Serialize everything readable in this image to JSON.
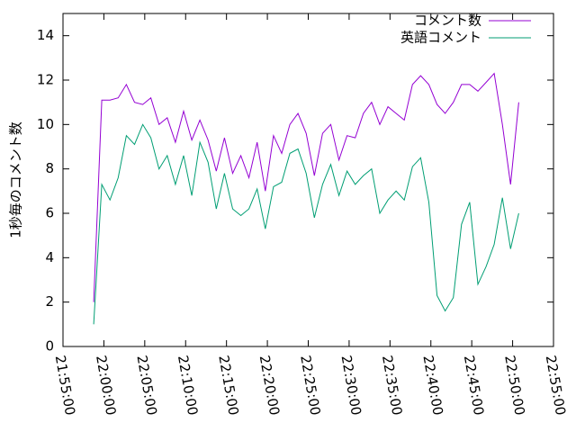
{
  "chart_data": {
    "type": "line",
    "ylabel": "1秒毎のコメント数",
    "x": [
      "21:58:45",
      "21:59:45",
      "22:00:45",
      "22:01:45",
      "22:02:45",
      "22:03:45",
      "22:04:45",
      "22:05:45",
      "22:06:45",
      "22:07:45",
      "22:08:45",
      "22:09:45",
      "22:10:45",
      "22:11:45",
      "22:12:45",
      "22:13:45",
      "22:14:45",
      "22:15:45",
      "22:16:45",
      "22:17:45",
      "22:18:45",
      "22:19:45",
      "22:20:45",
      "22:21:45",
      "22:22:45",
      "22:23:45",
      "22:24:45",
      "22:25:45",
      "22:26:45",
      "22:27:45",
      "22:28:45",
      "22:29:45",
      "22:30:45",
      "22:31:45",
      "22:32:45",
      "22:33:45",
      "22:34:45",
      "22:35:45",
      "22:36:45",
      "22:37:45",
      "22:38:45",
      "22:39:45",
      "22:40:45",
      "22:41:45",
      "22:42:45",
      "22:43:45",
      "22:44:45",
      "22:45:45",
      "22:46:45",
      "22:47:45",
      "22:48:45",
      "22:49:45",
      "22:50:45"
    ],
    "series": [
      {
        "name": "コメント数",
        "color": "#9400d3",
        "values": [
          2.0,
          11.1,
          11.1,
          11.2,
          11.8,
          11.0,
          10.9,
          11.2,
          10.0,
          10.3,
          9.2,
          10.6,
          9.3,
          10.2,
          9.3,
          7.9,
          9.4,
          7.8,
          8.6,
          7.6,
          9.2,
          7.0,
          9.5,
          8.7,
          10.0,
          10.5,
          9.6,
          7.7,
          9.6,
          10.0,
          8.4,
          9.5,
          9.4,
          10.5,
          11.0,
          10.0,
          10.8,
          10.5,
          10.2,
          11.8,
          12.2,
          11.8,
          10.9,
          10.5,
          11.0,
          11.8,
          11.8,
          11.5,
          11.9,
          12.3,
          10.0,
          7.3,
          11.0
        ]
      },
      {
        "name": "英語コメント",
        "color": "#009e73",
        "values": [
          1.0,
          7.3,
          6.6,
          7.6,
          9.5,
          9.1,
          10.0,
          9.4,
          8.0,
          8.6,
          7.3,
          8.6,
          6.8,
          9.2,
          8.3,
          6.2,
          7.8,
          6.2,
          5.9,
          6.2,
          7.1,
          5.3,
          7.2,
          7.4,
          8.7,
          8.9,
          7.8,
          5.8,
          7.3,
          8.2,
          6.8,
          7.9,
          7.3,
          7.7,
          8.0,
          6.0,
          6.6,
          7.0,
          6.6,
          8.1,
          8.5,
          6.5,
          2.3,
          1.6,
          2.2,
          5.5,
          6.5,
          2.8,
          3.6,
          4.6,
          6.7,
          4.4,
          6.0
        ]
      }
    ],
    "xlim": [
      "21:55:00",
      "22:55:00"
    ],
    "xticks": [
      "21:55:00",
      "22:00:00",
      "22:05:00",
      "22:10:00",
      "22:15:00",
      "22:20:00",
      "22:25:00",
      "22:30:00",
      "22:35:00",
      "22:40:00",
      "22:45:00",
      "22:50:00",
      "22:55:00"
    ],
    "ylim": [
      0,
      15
    ],
    "yticks": [
      0,
      2,
      4,
      6,
      8,
      10,
      12,
      14
    ],
    "legend": "upper right"
  }
}
